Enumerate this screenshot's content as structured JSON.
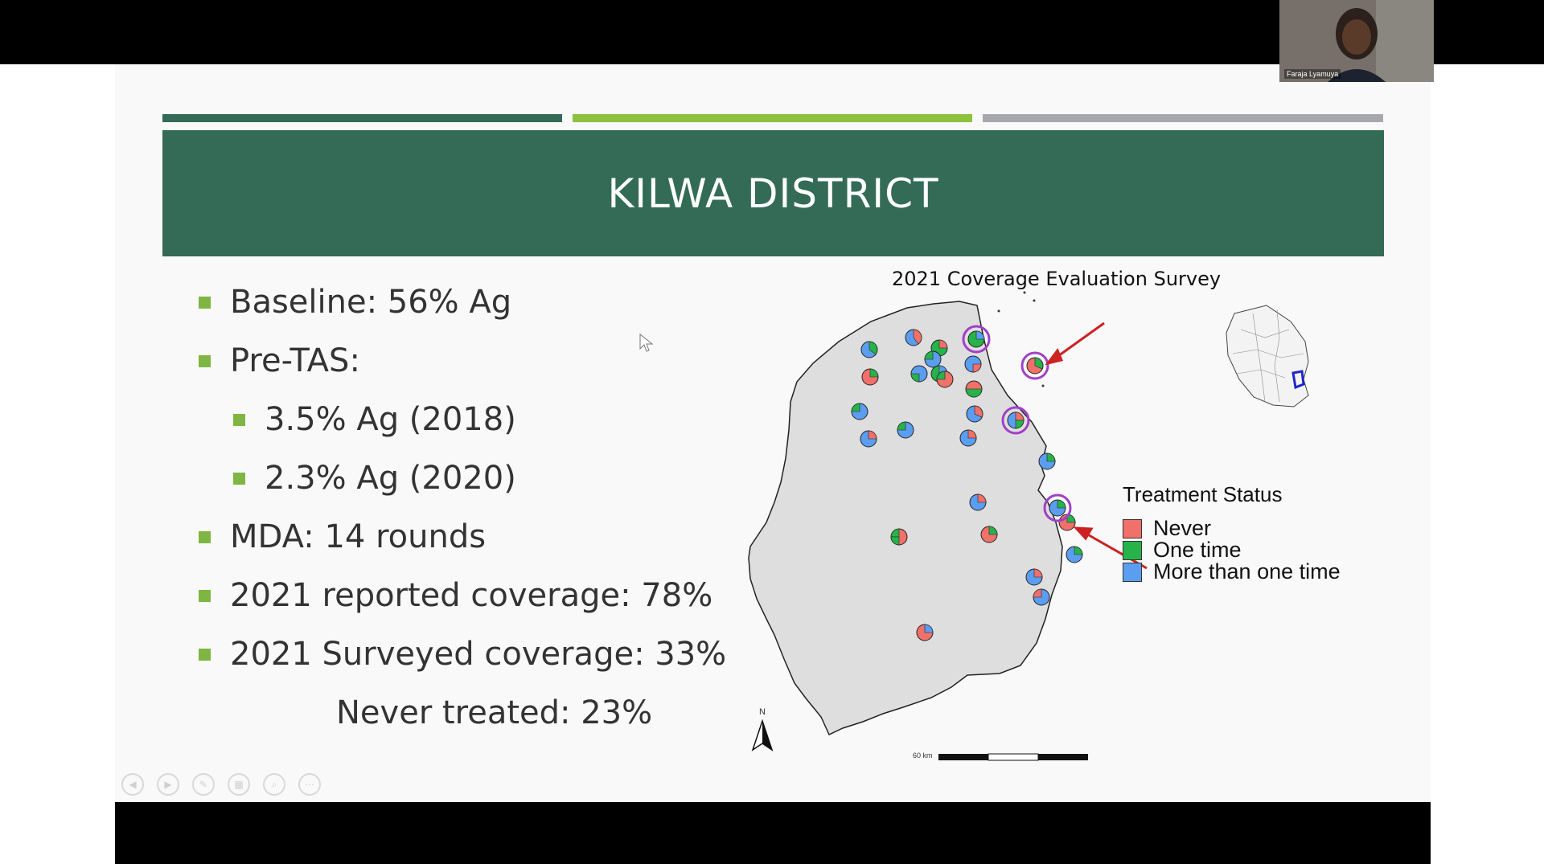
{
  "slide": {
    "title": "KILWA DISTRICT",
    "rule_colors": [
      "#336b57",
      "#8dc140",
      "#a7a8ad"
    ],
    "bullets": [
      {
        "level": 1,
        "text": "Baseline: 56% Ag"
      },
      {
        "level": 1,
        "text": "Pre-TAS:"
      },
      {
        "level": 2,
        "text": "3.5% Ag (2018)"
      },
      {
        "level": 2,
        "text": "2.3% Ag (2020)"
      },
      {
        "level": 1,
        "text": "MDA: 14 rounds"
      },
      {
        "level": 1,
        "text": "2021 reported coverage: 78%"
      },
      {
        "level": 1,
        "text": "2021 Surveyed coverage: 33%"
      }
    ],
    "note": "Never treated: 23%"
  },
  "map": {
    "title": "2021 Coverage Evaluation Survey",
    "legend": {
      "title": "Treatment Status",
      "items": [
        {
          "label": "Never",
          "color": "#f0706a"
        },
        {
          "label": "One time",
          "color": "#27b34a"
        },
        {
          "label": "More than one time",
          "color": "#5b9df0"
        }
      ]
    },
    "north_label": "N",
    "scale_label": "60 km",
    "highlight_color": "#a040c8",
    "arrow_color": "#cc2222",
    "district_fill": "#dedede"
  },
  "controls": [
    "previous-icon",
    "next-icon",
    "pen-icon",
    "slides-icon",
    "zoom-icon",
    "more-icon"
  ],
  "webcam": {
    "name": "Faraja Lyamuya"
  }
}
